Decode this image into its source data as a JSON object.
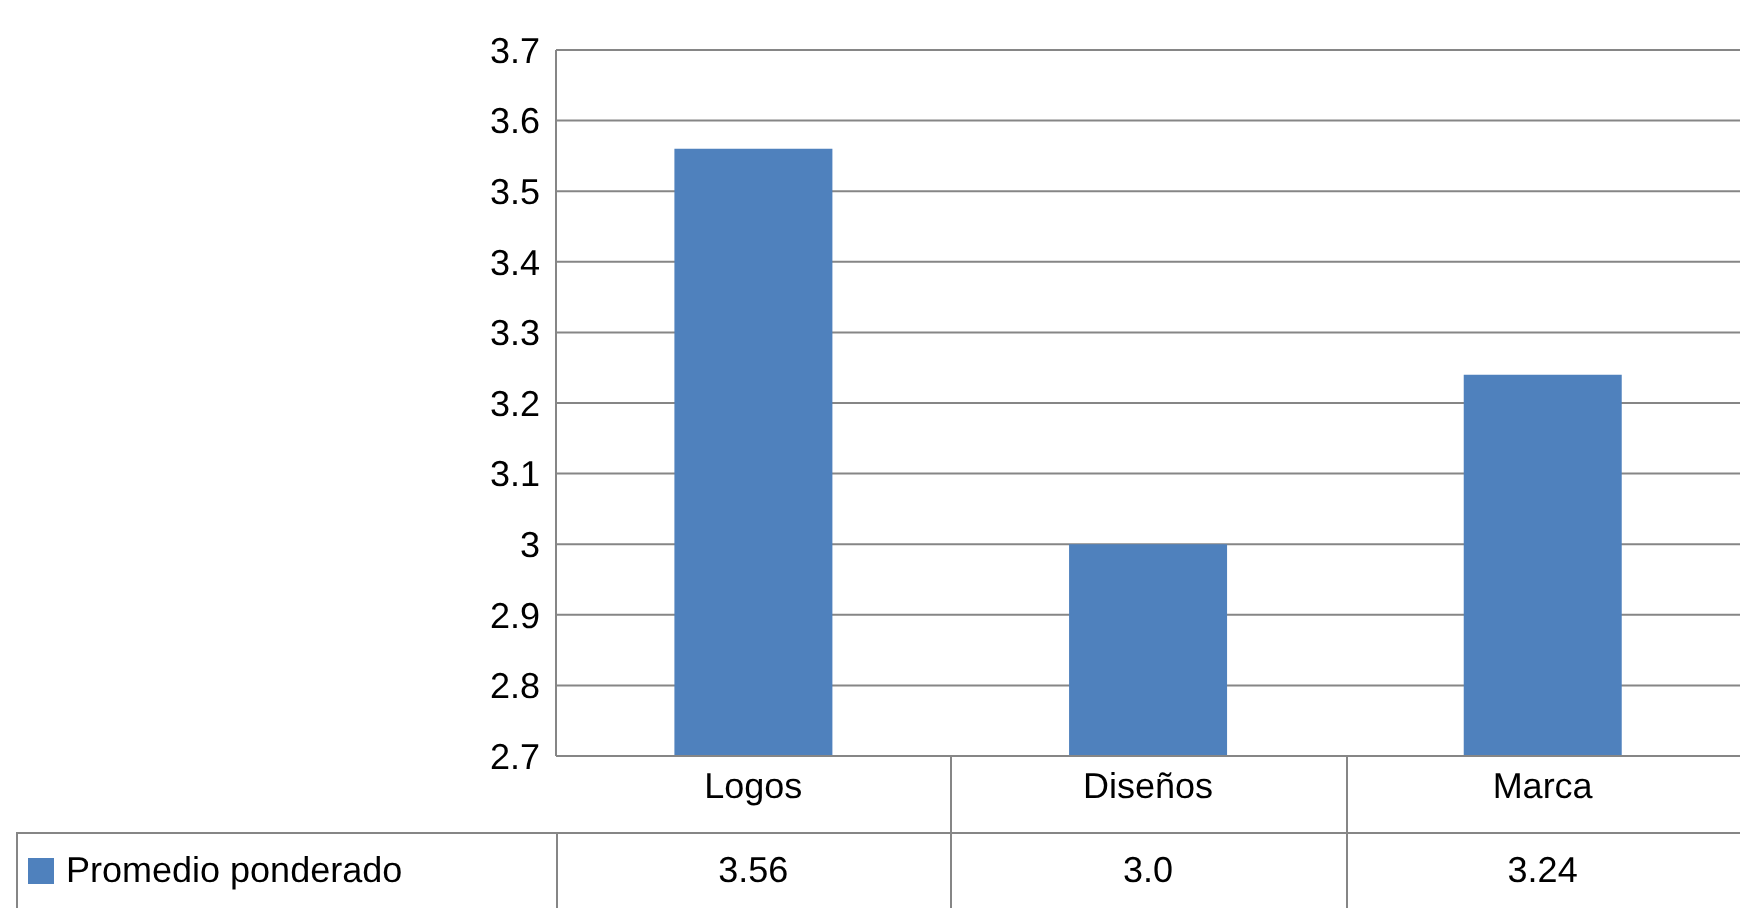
{
  "chart_data": {
    "type": "bar",
    "categories": [
      "Logos",
      "Diseños",
      "Marca"
    ],
    "series": [
      {
        "name": "Promedio ponderado",
        "color": "#4f81bd",
        "values": [
          3.56,
          3.0,
          3.24
        ],
        "value_labels": [
          "3.56",
          "3.0",
          "3.24"
        ]
      }
    ],
    "ylim": [
      2.7,
      3.7
    ],
    "yticks": [
      2.7,
      2.8,
      2.9,
      3,
      3.1,
      3.2,
      3.3,
      3.4,
      3.5,
      3.6,
      3.7
    ],
    "grid": "y",
    "legend": "bottom"
  }
}
